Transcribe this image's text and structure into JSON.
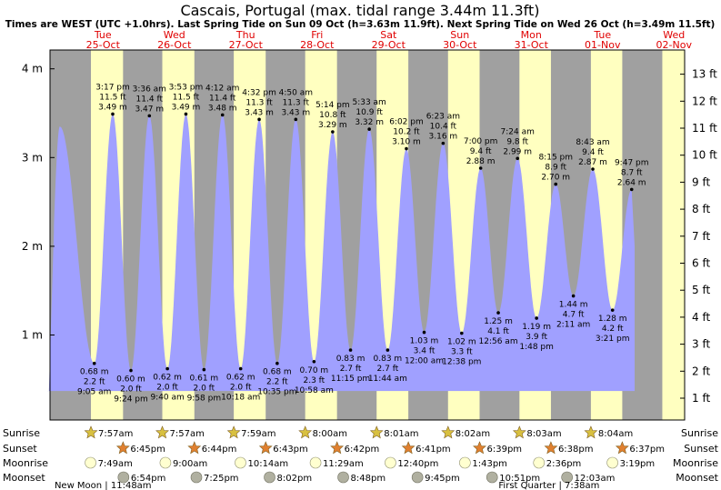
{
  "chart_data": {
    "type": "area",
    "title": "Cascais, Portugal (max. tidal range 3.44m 11.3ft)",
    "subtitle": "Times are WEST (UTC +1.0hrs). Last Spring Tide on Sun 09 Oct (h=3.63m 11.9ft). Next Spring Tide on Wed 26 Oct (h=3.49m 11.5ft)",
    "ylabel_left": "m",
    "ylabel_right": "ft",
    "ylim_m": [
      0,
      4.3
    ],
    "y_ticks_m": [
      {
        "v": 1,
        "label": "1 m"
      },
      {
        "v": 2,
        "label": "2 m"
      },
      {
        "v": 3,
        "label": "3 m"
      },
      {
        "v": 4,
        "label": "4 m"
      }
    ],
    "y_ticks_ft": [
      1,
      2,
      3,
      4,
      5,
      6,
      7,
      8,
      9,
      10,
      11,
      12,
      13
    ],
    "days": [
      {
        "day": "Tue",
        "date": "25-Oct"
      },
      {
        "day": "Wed",
        "date": "26-Oct"
      },
      {
        "day": "Thu",
        "date": "27-Oct"
      },
      {
        "day": "Fri",
        "date": "28-Oct"
      },
      {
        "day": "Sat",
        "date": "29-Oct"
      },
      {
        "day": "Sun",
        "date": "30-Oct"
      },
      {
        "day": "Mon",
        "date": "31-Oct"
      },
      {
        "day": "Tue",
        "date": "01-Nov"
      },
      {
        "day": "Wed",
        "date": "02-Nov"
      }
    ],
    "tides": [
      {
        "day": 0,
        "hour": -2.5,
        "m": 3.35,
        "type": "high",
        "labeled": false
      },
      {
        "day": 0,
        "hour": 9.083,
        "m": 0.68,
        "ft": "2.2 ft",
        "time": "9:05 am",
        "type": "low"
      },
      {
        "day": 0,
        "hour": 15.283,
        "m": 3.49,
        "ft": "11.5 ft",
        "time": "3:17 pm",
        "type": "high"
      },
      {
        "day": 0,
        "hour": 21.4,
        "m": 0.6,
        "ft": "2.0 ft",
        "time": "9:24 pm",
        "type": "low"
      },
      {
        "day": 1,
        "hour": 3.6,
        "m": 3.47,
        "ft": "11.4 ft",
        "time": "3:36 am",
        "type": "high"
      },
      {
        "day": 1,
        "hour": 9.667,
        "m": 0.62,
        "ft": "2.0 ft",
        "time": "9:40 am",
        "type": "low"
      },
      {
        "day": 1,
        "hour": 15.883,
        "m": 3.49,
        "ft": "11.5 ft",
        "time": "3:53 pm",
        "type": "high"
      },
      {
        "day": 1,
        "hour": 21.967,
        "m": 0.61,
        "ft": "2.0 ft",
        "time": "9:58 pm",
        "type": "low"
      },
      {
        "day": 2,
        "hour": 4.2,
        "m": 3.48,
        "ft": "11.4 ft",
        "time": "4:12 am",
        "type": "high"
      },
      {
        "day": 2,
        "hour": 10.3,
        "m": 0.62,
        "ft": "2.0 ft",
        "time": "10:18 am",
        "type": "low"
      },
      {
        "day": 2,
        "hour": 16.533,
        "m": 3.43,
        "ft": "11.3 ft",
        "time": "4:32 pm",
        "type": "high"
      },
      {
        "day": 2,
        "hour": 22.583,
        "m": 0.68,
        "ft": "2.2 ft",
        "time": "10:35 pm",
        "type": "low"
      },
      {
        "day": 3,
        "hour": 4.833,
        "m": 3.43,
        "ft": "11.3 ft",
        "time": "4:50 am",
        "type": "high"
      },
      {
        "day": 3,
        "hour": 10.967,
        "m": 0.7,
        "ft": "2.3 ft",
        "time": "10:58 am",
        "type": "low"
      },
      {
        "day": 3,
        "hour": 17.233,
        "m": 3.29,
        "ft": "10.8 ft",
        "time": "5:14 pm",
        "type": "high"
      },
      {
        "day": 3,
        "hour": 23.25,
        "m": 0.83,
        "ft": "2.7 ft",
        "time": "11:15 pm",
        "type": "low"
      },
      {
        "day": 4,
        "hour": 5.55,
        "m": 3.32,
        "ft": "10.9 ft",
        "time": "5:33 am",
        "type": "high"
      },
      {
        "day": 4,
        "hour": 11.733,
        "m": 0.83,
        "ft": "2.7 ft",
        "time": "11:44 am",
        "type": "low"
      },
      {
        "day": 4,
        "hour": 18.033,
        "m": 3.1,
        "ft": "10.2 ft",
        "time": "6:02 pm",
        "type": "high"
      },
      {
        "day": 5,
        "hour": 0.0,
        "m": 1.03,
        "ft": "3.4 ft",
        "time": "12:00 am",
        "type": "low"
      },
      {
        "day": 5,
        "hour": 6.383,
        "m": 3.16,
        "ft": "10.4 ft",
        "time": "6:23 am",
        "type": "high"
      },
      {
        "day": 5,
        "hour": 12.633,
        "m": 1.02,
        "ft": "3.3 ft",
        "time": "12:38 pm",
        "type": "low"
      },
      {
        "day": 5,
        "hour": 19.0,
        "m": 2.88,
        "ft": "9.4 ft",
        "time": "7:00 pm",
        "type": "high"
      },
      {
        "day": 6,
        "hour": 0.933,
        "m": 1.25,
        "ft": "4.1 ft",
        "time": "12:56 am",
        "type": "low"
      },
      {
        "day": 6,
        "hour": 7.4,
        "m": 2.99,
        "ft": "9.8 ft",
        "time": "7:24 am",
        "type": "high"
      },
      {
        "day": 6,
        "hour": 13.8,
        "m": 1.19,
        "ft": "3.9 ft",
        "time": "1:48 pm",
        "type": "low"
      },
      {
        "day": 6,
        "hour": 20.25,
        "m": 2.7,
        "ft": "8.9 ft",
        "time": "8:15 pm",
        "type": "high"
      },
      {
        "day": 7,
        "hour": 2.183,
        "m": 1.44,
        "ft": "4.7 ft",
        "time": "2:11 am",
        "type": "low"
      },
      {
        "day": 7,
        "hour": 8.717,
        "m": 2.87,
        "ft": "9.4 ft",
        "time": "8:43 am",
        "type": "high"
      },
      {
        "day": 7,
        "hour": 15.35,
        "m": 1.28,
        "ft": "4.2 ft",
        "time": "3:21 pm",
        "type": "low"
      },
      {
        "day": 7,
        "hour": 21.783,
        "m": 2.64,
        "ft": "8.7 ft",
        "time": "9:47 pm",
        "type": "high"
      }
    ],
    "sun_moon": {
      "row_labels": [
        "Sunrise",
        "Sunset",
        "Moonrise",
        "Moonset"
      ],
      "sunrise": [
        "7:57am",
        "7:57am",
        "7:59am",
        "8:00am",
        "8:01am",
        "8:02am",
        "8:03am",
        "8:04am"
      ],
      "sunset": [
        "6:45pm",
        "6:44pm",
        "6:43pm",
        "6:42pm",
        "6:41pm",
        "6:39pm",
        "6:38pm",
        "6:37pm"
      ],
      "moonrise": [
        "7:49am",
        "9:00am",
        "10:14am",
        "11:29am",
        "12:40pm",
        "1:43pm",
        "2:36pm",
        "3:19pm"
      ],
      "moonset": [
        "6:54pm",
        "7:25pm",
        "8:02pm",
        "8:48pm",
        "9:45pm",
        "10:51pm",
        "12:03am"
      ]
    },
    "moon_phases": [
      {
        "text": "New Moon | 11:48am"
      },
      {
        "text": "First Quarter | 7:38am"
      }
    ],
    "colors": {
      "night": "#a0a0a0",
      "day": "#ffffc0",
      "water": "#a0a0ff",
      "sun": "#d8c040",
      "sunset": "#e08030",
      "moon": "#ffffd0",
      "moonset": "#b0b0a0",
      "day_text": "#e00000"
    }
  }
}
